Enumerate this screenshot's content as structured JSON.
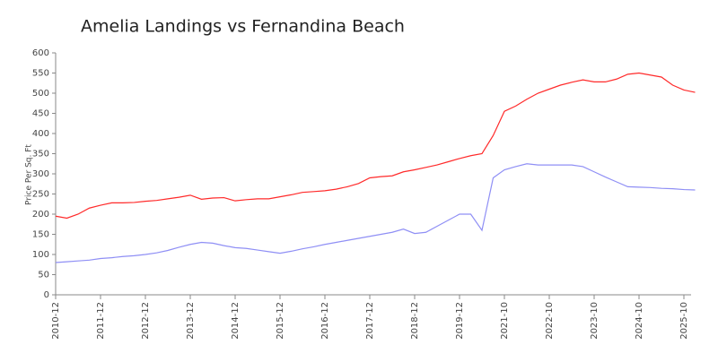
{
  "chart_data": {
    "type": "line",
    "title": "Amelia Landings vs Fernandina Beach",
    "ylabel": "Price Per Sq. Ft",
    "categories": [
      "2010-12",
      null,
      null,
      null,
      "2011-12",
      null,
      null,
      null,
      "2012-12",
      null,
      null,
      null,
      "2013-12",
      null,
      null,
      null,
      "2014-12",
      null,
      null,
      null,
      "2015-12",
      null,
      null,
      null,
      "2016-12",
      null,
      null,
      null,
      "2017-12",
      null,
      null,
      null,
      "2018-12",
      null,
      null,
      null,
      "2019-12",
      null,
      null,
      null,
      "2021-10",
      null,
      null,
      null,
      "2022-10",
      null,
      null,
      null,
      "2023-10",
      null,
      null,
      null,
      "2024-10",
      null,
      null,
      null,
      "2025-10",
      null
    ],
    "series": [
      {
        "color": "#ff2a2a",
        "values": [
          195,
          190,
          200,
          215,
          222,
          228,
          228,
          229,
          232,
          234,
          238,
          242,
          247,
          237,
          240,
          241,
          233,
          236,
          238,
          238,
          243,
          248,
          254,
          256,
          258,
          262,
          268,
          276,
          290,
          293,
          295,
          305,
          310,
          316,
          322,
          330,
          338,
          345,
          350,
          395,
          455,
          468,
          485,
          500,
          510,
          520,
          527,
          533,
          528,
          528,
          535,
          547,
          550,
          545,
          540,
          520,
          508,
          502
        ]
      },
      {
        "color": "#8f8ff5",
        "values": [
          80,
          82,
          84,
          86,
          90,
          92,
          95,
          97,
          100,
          104,
          110,
          118,
          125,
          130,
          128,
          122,
          117,
          115,
          111,
          107,
          103,
          108,
          114,
          119,
          125,
          130,
          135,
          140,
          145,
          150,
          155,
          163,
          152,
          155,
          170,
          185,
          200,
          200,
          160,
          290,
          310,
          318,
          325,
          322,
          322,
          322,
          322,
          318,
          305,
          292,
          280,
          268,
          267,
          266,
          264,
          263,
          261,
          260
        ]
      }
    ],
    "ylim": [
      0,
      600
    ],
    "yticks": [
      0,
      50,
      100,
      150,
      200,
      250,
      300,
      350,
      400,
      450,
      500,
      550,
      600
    ]
  }
}
